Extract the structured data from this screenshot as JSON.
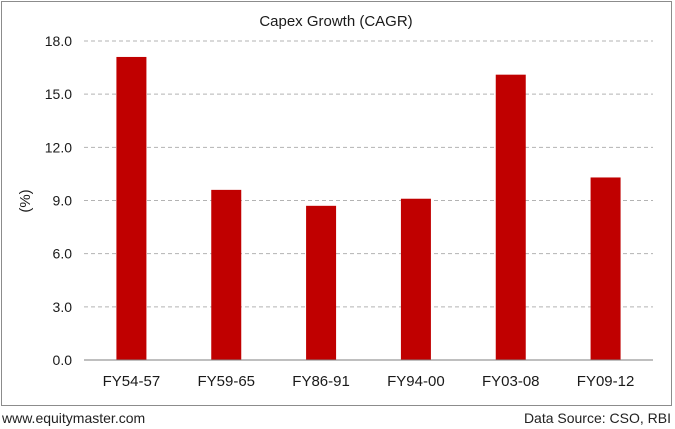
{
  "chart_data": {
    "type": "bar",
    "title": "Capex Growth (CAGR)",
    "xlabel": "",
    "ylabel": "(%)",
    "categories": [
      "FY54-57",
      "FY59-65",
      "FY86-91",
      "FY94-00",
      "FY03-08",
      "FY09-12"
    ],
    "values": [
      17.1,
      9.6,
      8.7,
      9.1,
      16.1,
      10.3
    ],
    "ylim": [
      0,
      18
    ],
    "yticks": [
      "0.0",
      "3.0",
      "6.0",
      "9.0",
      "12.0",
      "15.0",
      "18.0"
    ],
    "grid": "horizontal dashed",
    "legend": "none",
    "bar_color": "#c00000"
  },
  "footer": {
    "website": "www.equitymaster.com",
    "source": "Data Source: CSO, RBI"
  }
}
